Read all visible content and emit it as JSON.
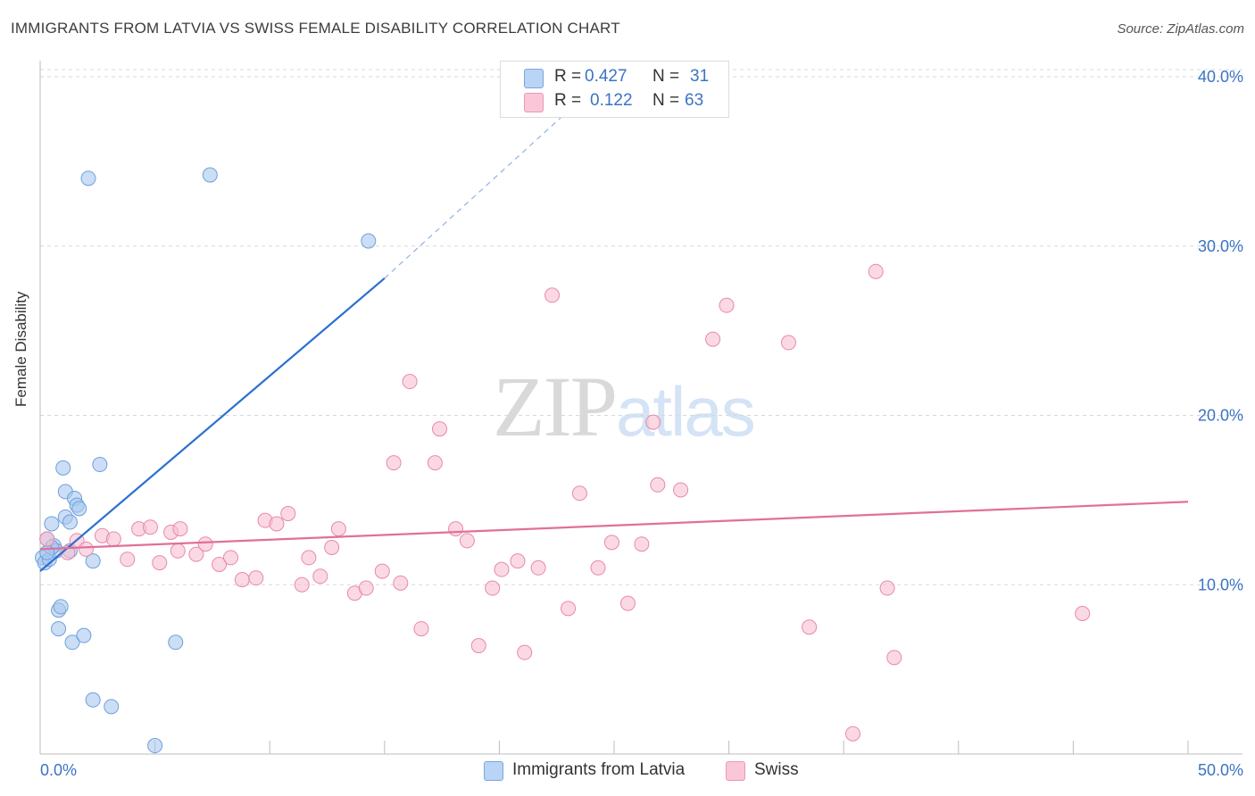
{
  "header": {
    "title": "IMMIGRANTS FROM LATVIA VS SWISS FEMALE DISABILITY CORRELATION CHART",
    "source": "Source: ZipAtlas.com"
  },
  "watermark": {
    "zip": "ZIP",
    "atlas": "atlas"
  },
  "legend": {
    "series1": {
      "r_label": "R =",
      "r_value": "0.427",
      "n_label": "N =",
      "n_value": "31"
    },
    "series2": {
      "r_label": "R =",
      "r_value": "0.122",
      "n_label": "N =",
      "n_value": "63"
    }
  },
  "bottom_legend": {
    "series1": "Immigrants from Latvia",
    "series2": "Swiss"
  },
  "chart_data": {
    "type": "scatter",
    "title": "IMMIGRANTS FROM LATVIA VS SWISS FEMALE DISABILITY CORRELATION CHART",
    "xlabel": "",
    "ylabel": "Female Disability",
    "xlim": [
      0,
      50
    ],
    "ylim": [
      0,
      40
    ],
    "x_tick_labels": [
      "0.0%",
      "50.0%"
    ],
    "y_ticks": [
      10,
      20,
      30,
      40
    ],
    "y_tick_labels": [
      "10.0%",
      "20.0%",
      "30.0%",
      "40.0%"
    ],
    "grid": true,
    "series": [
      {
        "name": "Immigrants from Latvia",
        "color": "#a8c8f0",
        "stroke": "#6f9fd8",
        "line_color": "#2a6fd0",
        "trend": {
          "x0": 0,
          "y0": 10.8,
          "x1": 15,
          "y1": 28.1,
          "dashed_to_x": 23.5,
          "dashed_to_y": 38.6
        },
        "points": [
          [
            0.1,
            11.6
          ],
          [
            0.2,
            11.3
          ],
          [
            0.3,
            12.7
          ],
          [
            0.4,
            11.5
          ],
          [
            0.5,
            13.6
          ],
          [
            0.6,
            12.3
          ],
          [
            0.7,
            12.0
          ],
          [
            0.8,
            8.5
          ],
          [
            0.8,
            7.4
          ],
          [
            0.9,
            8.7
          ],
          [
            1.0,
            16.9
          ],
          [
            1.1,
            15.5
          ],
          [
            1.1,
            14.0
          ],
          [
            1.3,
            12.0
          ],
          [
            1.3,
            13.7
          ],
          [
            1.4,
            6.6
          ],
          [
            1.5,
            15.1
          ],
          [
            1.6,
            14.7
          ],
          [
            1.7,
            14.5
          ],
          [
            1.9,
            7.0
          ],
          [
            2.1,
            34.0
          ],
          [
            2.3,
            3.2
          ],
          [
            2.3,
            11.4
          ],
          [
            2.6,
            17.1
          ],
          [
            3.1,
            2.8
          ],
          [
            5.0,
            0.5
          ],
          [
            5.9,
            6.6
          ],
          [
            7.4,
            34.2
          ],
          [
            14.3,
            30.3
          ],
          [
            0.5,
            12.2
          ],
          [
            0.3,
            11.9
          ]
        ]
      },
      {
        "name": "Swiss",
        "color": "#f8bfd2",
        "stroke": "#e889a9",
        "line_color": "#e0709a",
        "trend": {
          "x0": 0,
          "y0": 12.1,
          "x1": 50,
          "y1": 14.9
        },
        "points": [
          [
            0.3,
            12.7
          ],
          [
            1.2,
            11.9
          ],
          [
            1.6,
            12.6
          ],
          [
            2.0,
            12.1
          ],
          [
            2.7,
            12.9
          ],
          [
            3.2,
            12.7
          ],
          [
            3.8,
            11.5
          ],
          [
            4.3,
            13.3
          ],
          [
            4.8,
            13.4
          ],
          [
            5.2,
            11.3
          ],
          [
            5.7,
            13.1
          ],
          [
            6.0,
            12.0
          ],
          [
            6.1,
            13.3
          ],
          [
            6.8,
            11.8
          ],
          [
            7.2,
            12.4
          ],
          [
            7.8,
            11.2
          ],
          [
            8.3,
            11.6
          ],
          [
            8.8,
            10.3
          ],
          [
            9.4,
            10.4
          ],
          [
            9.8,
            13.8
          ],
          [
            10.3,
            13.6
          ],
          [
            10.8,
            14.2
          ],
          [
            11.4,
            10.0
          ],
          [
            11.7,
            11.6
          ],
          [
            12.2,
            10.5
          ],
          [
            12.7,
            12.2
          ],
          [
            13.0,
            13.3
          ],
          [
            13.7,
            9.5
          ],
          [
            14.2,
            9.8
          ],
          [
            14.9,
            10.8
          ],
          [
            15.4,
            17.2
          ],
          [
            15.7,
            10.1
          ],
          [
            16.1,
            22.0
          ],
          [
            16.6,
            7.4
          ],
          [
            17.2,
            17.2
          ],
          [
            17.4,
            19.2
          ],
          [
            18.1,
            13.3
          ],
          [
            18.6,
            12.6
          ],
          [
            19.1,
            6.4
          ],
          [
            19.7,
            9.8
          ],
          [
            20.1,
            10.9
          ],
          [
            20.8,
            11.4
          ],
          [
            21.1,
            6.0
          ],
          [
            21.7,
            11.0
          ],
          [
            22.3,
            27.1
          ],
          [
            23.0,
            8.6
          ],
          [
            23.5,
            15.4
          ],
          [
            24.3,
            11.0
          ],
          [
            24.9,
            12.5
          ],
          [
            25.6,
            8.9
          ],
          [
            26.2,
            12.4
          ],
          [
            26.7,
            19.6
          ],
          [
            26.9,
            15.9
          ],
          [
            27.9,
            15.6
          ],
          [
            29.3,
            24.5
          ],
          [
            29.9,
            26.5
          ],
          [
            32.6,
            24.3
          ],
          [
            33.5,
            7.5
          ],
          [
            35.4,
            1.2
          ],
          [
            36.4,
            28.5
          ],
          [
            36.9,
            9.8
          ],
          [
            37.2,
            5.7
          ],
          [
            45.4,
            8.3
          ]
        ]
      }
    ]
  }
}
